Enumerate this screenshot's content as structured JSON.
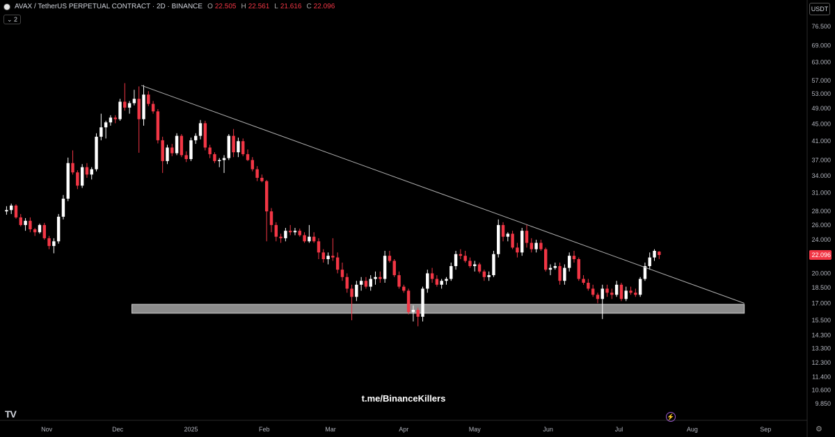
{
  "header": {
    "symbol": "AVAX / TetherUS PERPETUAL CONTRACT · 2D · BINANCE",
    "o_label": "O",
    "o": "22.505",
    "h_label": "H",
    "h": "22.561",
    "l_label": "L",
    "l": "21.616",
    "c_label": "C",
    "c": "22.096",
    "indicator_count": "2"
  },
  "currency": "USDT",
  "watermark": "t.me/BinanceKillers",
  "colors": {
    "up": "#ffffff",
    "down": "#f23645",
    "background": "#000000",
    "zone": "#8c8c8c",
    "trendline": "#b0b0b0"
  },
  "icons": {
    "logo": "tradingview-logo-icon",
    "bolt": "lightning-icon",
    "settings": "gear-icon"
  },
  "chart_data": {
    "type": "candlestick",
    "scale": "log",
    "ylim": [
      9.0,
      85.0
    ],
    "xlim": [
      "2024-10-14",
      "2025-09-18"
    ],
    "y_ticks": [
      "76.500",
      "69.000",
      "63.000",
      "57.000",
      "53.000",
      "49.000",
      "45.000",
      "41.000",
      "37.000",
      "34.000",
      "31.000",
      "28.000",
      "26.000",
      "24.000",
      "22.096",
      "20.000",
      "18.500",
      "17.000",
      "15.500",
      "14.300",
      "13.300",
      "12.300",
      "11.400",
      "10.600",
      "9.850"
    ],
    "x_ticks": [
      {
        "label": "Nov",
        "date": "2024-11-01"
      },
      {
        "label": "Dec",
        "date": "2024-12-01"
      },
      {
        "label": "2025",
        "date": "2025-01-01"
      },
      {
        "label": "Feb",
        "date": "2025-02-01"
      },
      {
        "label": "Mar",
        "date": "2025-03-01"
      },
      {
        "label": "Apr",
        "date": "2025-04-01"
      },
      {
        "label": "May",
        "date": "2025-05-01"
      },
      {
        "label": "Jun",
        "date": "2025-06-01"
      },
      {
        "label": "Jul",
        "date": "2025-07-01"
      },
      {
        "label": "Aug",
        "date": "2025-08-01"
      },
      {
        "label": "Sep",
        "date": "2025-09-01"
      }
    ],
    "last_price": 22.096,
    "trendline": {
      "from": {
        "date": "2024-12-11",
        "price": 55.5
      },
      "to": {
        "date": "2025-08-23",
        "price": 17.0
      }
    },
    "support_zone": {
      "from": "2024-12-07",
      "to": "2025-08-23",
      "low": 16.1,
      "high": 16.9
    },
    "candles": [
      [
        "2024-10-14",
        28.0,
        28.8,
        27.5,
        28.2
      ],
      [
        "2024-10-16",
        28.2,
        29.2,
        27.6,
        28.9
      ],
      [
        "2024-10-18",
        28.9,
        29.1,
        26.9,
        27.1
      ],
      [
        "2024-10-20",
        27.1,
        27.6,
        25.8,
        26.0
      ],
      [
        "2024-10-22",
        26.0,
        27.0,
        25.2,
        26.6
      ],
      [
        "2024-10-24",
        26.6,
        27.1,
        25.0,
        25.4
      ],
      [
        "2024-10-26",
        25.4,
        25.6,
        24.5,
        25.0
      ],
      [
        "2024-10-28",
        25.0,
        26.2,
        24.8,
        26.0
      ],
      [
        "2024-10-30",
        26.0,
        26.3,
        24.0,
        24.2
      ],
      [
        "2024-11-01",
        24.2,
        24.5,
        22.8,
        23.2
      ],
      [
        "2024-11-03",
        23.2,
        24.2,
        22.3,
        23.8
      ],
      [
        "2024-11-05",
        23.8,
        27.6,
        23.5,
        27.2
      ],
      [
        "2024-11-07",
        27.2,
        30.6,
        26.8,
        30.0
      ],
      [
        "2024-11-09",
        30.0,
        37.5,
        29.6,
        36.4
      ],
      [
        "2024-11-11",
        36.4,
        39.0,
        34.2,
        34.6
      ],
      [
        "2024-11-13",
        34.6,
        35.0,
        31.6,
        32.2
      ],
      [
        "2024-11-15",
        32.2,
        36.2,
        31.8,
        35.6
      ],
      [
        "2024-11-17",
        35.6,
        36.4,
        33.6,
        34.2
      ],
      [
        "2024-11-19",
        34.2,
        35.6,
        33.3,
        35.2
      ],
      [
        "2024-11-21",
        35.2,
        42.8,
        34.8,
        42.0
      ],
      [
        "2024-11-23",
        42.0,
        47.6,
        41.2,
        44.2
      ],
      [
        "2024-11-25",
        44.2,
        45.8,
        41.6,
        45.4
      ],
      [
        "2024-11-27",
        45.4,
        47.2,
        44.6,
        46.6
      ],
      [
        "2024-11-29",
        46.6,
        47.2,
        45.2,
        46.2
      ],
      [
        "2024-12-01",
        46.2,
        51.6,
        45.8,
        50.8
      ],
      [
        "2024-12-03",
        50.8,
        56.2,
        48.4,
        49.2
      ],
      [
        "2024-12-05",
        49.2,
        51.0,
        47.6,
        50.4
      ],
      [
        "2024-12-07",
        50.4,
        54.2,
        49.8,
        51.6
      ],
      [
        "2024-12-09",
        51.6,
        55.2,
        38.5,
        46.2
      ],
      [
        "2024-12-11",
        46.2,
        55.6,
        44.6,
        52.8
      ],
      [
        "2024-12-13",
        52.8,
        53.8,
        49.6,
        50.2
      ],
      [
        "2024-12-15",
        50.2,
        51.0,
        47.6,
        48.2
      ],
      [
        "2024-12-17",
        48.2,
        48.8,
        40.5,
        41.2
      ],
      [
        "2024-12-19",
        41.2,
        42.0,
        34.5,
        36.8
      ],
      [
        "2024-12-21",
        36.8,
        40.2,
        36.2,
        39.6
      ],
      [
        "2024-12-23",
        39.6,
        40.4,
        37.8,
        38.4
      ],
      [
        "2024-12-25",
        38.4,
        42.8,
        38.0,
        42.2
      ],
      [
        "2024-12-27",
        42.2,
        42.6,
        37.6,
        38.0
      ],
      [
        "2024-12-29",
        38.0,
        38.8,
        36.6,
        37.2
      ],
      [
        "2024-12-31",
        37.2,
        41.8,
        36.8,
        41.2
      ],
      [
        "2025-01-02",
        41.2,
        42.8,
        40.4,
        42.2
      ],
      [
        "2025-01-04",
        42.2,
        46.0,
        41.4,
        45.2
      ],
      [
        "2025-01-06",
        45.2,
        45.8,
        39.0,
        39.6
      ],
      [
        "2025-01-08",
        39.6,
        40.2,
        37.4,
        38.2
      ],
      [
        "2025-01-10",
        38.2,
        38.6,
        36.4,
        36.8
      ],
      [
        "2025-01-12",
        36.8,
        37.4,
        35.6,
        37.0
      ],
      [
        "2025-01-14",
        37.0,
        38.0,
        34.5,
        37.4
      ],
      [
        "2025-01-16",
        37.4,
        42.6,
        37.0,
        42.2
      ],
      [
        "2025-01-18",
        42.2,
        43.8,
        37.6,
        38.6
      ],
      [
        "2025-01-20",
        38.6,
        41.8,
        37.6,
        41.0
      ],
      [
        "2025-01-22",
        41.0,
        41.6,
        37.8,
        38.2
      ],
      [
        "2025-01-24",
        38.2,
        39.2,
        36.8,
        37.0
      ],
      [
        "2025-01-26",
        37.0,
        37.6,
        34.8,
        35.2
      ],
      [
        "2025-01-28",
        35.2,
        35.8,
        33.0,
        33.6
      ],
      [
        "2025-01-30",
        33.6,
        34.2,
        32.8,
        33.0
      ],
      [
        "2025-02-01",
        33.0,
        33.2,
        23.8,
        28.0
      ],
      [
        "2025-02-03",
        28.0,
        28.5,
        25.0,
        26.0
      ],
      [
        "2025-02-05",
        26.0,
        26.4,
        23.8,
        24.4
      ],
      [
        "2025-02-07",
        24.4,
        24.8,
        23.6,
        24.2
      ],
      [
        "2025-02-09",
        24.2,
        25.6,
        23.8,
        25.2
      ],
      [
        "2025-02-11",
        25.2,
        26.0,
        24.6,
        25.0
      ],
      [
        "2025-02-13",
        25.0,
        25.6,
        24.6,
        25.2
      ],
      [
        "2025-02-15",
        25.2,
        25.5,
        24.4,
        24.6
      ],
      [
        "2025-02-17",
        24.6,
        25.0,
        23.6,
        23.8
      ],
      [
        "2025-02-19",
        23.8,
        26.0,
        23.6,
        24.4
      ],
      [
        "2025-02-21",
        24.4,
        25.0,
        23.6,
        23.8
      ],
      [
        "2025-02-23",
        23.8,
        24.2,
        21.6,
        22.4
      ],
      [
        "2025-02-25",
        22.4,
        22.8,
        21.2,
        21.6
      ],
      [
        "2025-02-27",
        21.6,
        22.4,
        21.0,
        22.0
      ],
      [
        "2025-03-01",
        22.0,
        24.2,
        21.4,
        21.8
      ],
      [
        "2025-03-03",
        21.8,
        22.4,
        20.0,
        20.4
      ],
      [
        "2025-03-05",
        20.4,
        21.2,
        19.2,
        19.6
      ],
      [
        "2025-03-07",
        19.6,
        20.0,
        18.0,
        18.4
      ],
      [
        "2025-03-09",
        18.4,
        18.8,
        15.5,
        17.6
      ],
      [
        "2025-03-11",
        17.6,
        19.2,
        17.2,
        18.8
      ],
      [
        "2025-03-13",
        18.8,
        19.6,
        18.2,
        19.2
      ],
      [
        "2025-03-15",
        19.2,
        19.6,
        18.4,
        18.6
      ],
      [
        "2025-03-17",
        18.6,
        19.8,
        18.2,
        19.4
      ],
      [
        "2025-03-19",
        19.4,
        20.2,
        18.8,
        19.6
      ],
      [
        "2025-03-21",
        19.6,
        20.2,
        19.0,
        19.4
      ],
      [
        "2025-03-23",
        19.4,
        22.6,
        19.0,
        22.0
      ],
      [
        "2025-03-25",
        22.0,
        22.6,
        21.2,
        21.4
      ],
      [
        "2025-03-27",
        21.4,
        21.6,
        19.6,
        19.8
      ],
      [
        "2025-03-29",
        19.8,
        20.2,
        18.4,
        18.6
      ],
      [
        "2025-03-31",
        18.6,
        18.8,
        18.0,
        18.2
      ],
      [
        "2025-04-02",
        18.2,
        18.4,
        16.0,
        16.2
      ],
      [
        "2025-04-04",
        16.2,
        16.8,
        15.4,
        16.4
      ],
      [
        "2025-04-06",
        16.4,
        16.6,
        15.0,
        15.8
      ],
      [
        "2025-04-08",
        15.8,
        18.6,
        15.4,
        18.4
      ],
      [
        "2025-04-10",
        18.4,
        20.4,
        18.0,
        20.0
      ],
      [
        "2025-04-12",
        20.0,
        20.6,
        19.0,
        19.4
      ],
      [
        "2025-04-14",
        19.4,
        19.8,
        18.6,
        18.8
      ],
      [
        "2025-04-16",
        18.8,
        19.4,
        18.4,
        19.2
      ],
      [
        "2025-04-18",
        19.2,
        19.6,
        18.8,
        19.4
      ],
      [
        "2025-04-20",
        19.4,
        21.2,
        19.2,
        20.8
      ],
      [
        "2025-04-22",
        20.8,
        22.6,
        20.4,
        22.2
      ],
      [
        "2025-04-24",
        22.2,
        22.8,
        21.6,
        22.0
      ],
      [
        "2025-04-26",
        22.0,
        22.6,
        21.2,
        21.4
      ],
      [
        "2025-04-28",
        21.4,
        21.8,
        20.6,
        20.8
      ],
      [
        "2025-04-30",
        20.8,
        21.4,
        20.2,
        21.0
      ],
      [
        "2025-05-02",
        21.0,
        21.2,
        20.0,
        20.2
      ],
      [
        "2025-05-04",
        20.2,
        20.4,
        19.2,
        19.6
      ],
      [
        "2025-05-06",
        19.6,
        20.2,
        19.2,
        19.8
      ],
      [
        "2025-05-08",
        19.8,
        22.6,
        19.6,
        22.2
      ],
      [
        "2025-05-10",
        22.2,
        26.8,
        21.8,
        26.0
      ],
      [
        "2025-05-12",
        26.0,
        26.4,
        23.8,
        24.4
      ],
      [
        "2025-05-14",
        24.4,
        25.0,
        23.8,
        24.8
      ],
      [
        "2025-05-16",
        24.8,
        25.2,
        22.8,
        23.0
      ],
      [
        "2025-05-18",
        23.0,
        23.6,
        21.8,
        22.4
      ],
      [
        "2025-05-20",
        22.4,
        25.6,
        22.0,
        25.2
      ],
      [
        "2025-05-22",
        25.2,
        26.0,
        23.0,
        23.6
      ],
      [
        "2025-05-24",
        23.6,
        24.2,
        22.4,
        22.8
      ],
      [
        "2025-05-26",
        22.8,
        24.0,
        22.4,
        23.6
      ],
      [
        "2025-05-28",
        23.6,
        24.0,
        22.6,
        22.8
      ],
      [
        "2025-05-30",
        22.8,
        23.0,
        20.2,
        20.4
      ],
      [
        "2025-06-01",
        20.4,
        21.0,
        19.8,
        20.6
      ],
      [
        "2025-06-03",
        20.6,
        21.2,
        20.4,
        20.8
      ],
      [
        "2025-06-05",
        20.8,
        21.2,
        18.8,
        19.2
      ],
      [
        "2025-06-07",
        19.2,
        21.0,
        18.8,
        20.6
      ],
      [
        "2025-06-09",
        20.6,
        22.4,
        20.2,
        22.0
      ],
      [
        "2025-06-11",
        22.0,
        22.6,
        21.2,
        21.6
      ],
      [
        "2025-06-13",
        21.6,
        21.8,
        19.2,
        19.4
      ],
      [
        "2025-06-15",
        19.4,
        19.8,
        18.8,
        19.0
      ],
      [
        "2025-06-17",
        19.0,
        19.4,
        18.2,
        18.4
      ],
      [
        "2025-06-19",
        18.4,
        18.8,
        17.6,
        17.8
      ],
      [
        "2025-06-21",
        17.8,
        18.0,
        17.0,
        17.4
      ],
      [
        "2025-06-23",
        17.4,
        18.8,
        15.6,
        18.4
      ],
      [
        "2025-06-25",
        18.4,
        18.8,
        17.6,
        18.0
      ],
      [
        "2025-06-27",
        18.0,
        18.4,
        17.4,
        17.8
      ],
      [
        "2025-06-29",
        17.8,
        19.2,
        17.6,
        18.8
      ],
      [
        "2025-07-01",
        18.8,
        19.0,
        17.2,
        17.4
      ],
      [
        "2025-07-03",
        17.4,
        18.6,
        17.2,
        18.2
      ],
      [
        "2025-07-05",
        18.2,
        18.6,
        17.8,
        18.0
      ],
      [
        "2025-07-07",
        18.0,
        18.4,
        17.6,
        17.8
      ],
      [
        "2025-07-09",
        17.8,
        19.6,
        17.6,
        19.4
      ],
      [
        "2025-07-11",
        19.4,
        21.2,
        19.2,
        20.8
      ],
      [
        "2025-07-13",
        20.8,
        22.4,
        20.4,
        21.8
      ],
      [
        "2025-07-15",
        21.8,
        22.8,
        21.4,
        22.6
      ],
      [
        "2025-07-17",
        22.505,
        22.561,
        21.616,
        22.096
      ]
    ]
  }
}
